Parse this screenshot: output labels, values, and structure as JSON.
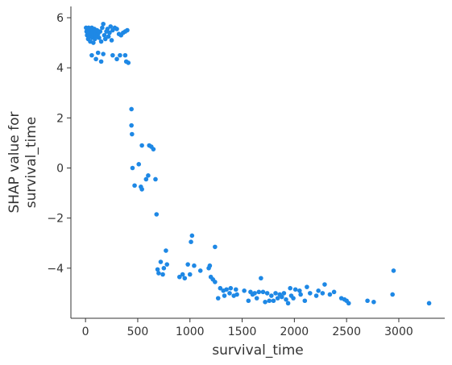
{
  "chart_data": {
    "type": "scatter",
    "title": "",
    "xlabel": "survival_time",
    "ylabel_lines": [
      "SHAP value for",
      "survival_time"
    ],
    "xlim": [
      -140,
      3440
    ],
    "ylim": [
      -6.0,
      6.45
    ],
    "xticks": [
      0,
      500,
      1000,
      1500,
      2000,
      2500,
      3000
    ],
    "yticks": [
      -4,
      -2,
      0,
      2,
      4,
      6
    ],
    "ytick_labels": [
      "−4",
      "−2",
      "0",
      "2",
      "4",
      "6"
    ],
    "point_color": "#1E88E5",
    "grid": false,
    "series": [
      {
        "points": [
          [
            5,
            5.6
          ],
          [
            10,
            5.45
          ],
          [
            15,
            5.3
          ],
          [
            20,
            5.5
          ],
          [
            25,
            5.15
          ],
          [
            30,
            5.6
          ],
          [
            35,
            5.4
          ],
          [
            40,
            5.25
          ],
          [
            45,
            5.05
          ],
          [
            50,
            5.5
          ],
          [
            55,
            5.35
          ],
          [
            60,
            5.6
          ],
          [
            65,
            5.2
          ],
          [
            70,
            5.45
          ],
          [
            75,
            5.0
          ],
          [
            80,
            5.3
          ],
          [
            85,
            5.55
          ],
          [
            90,
            5.15
          ],
          [
            95,
            5.4
          ],
          [
            100,
            5.25
          ],
          [
            110,
            5.5
          ],
          [
            120,
            5.35
          ],
          [
            130,
            5.2
          ],
          [
            140,
            5.45
          ],
          [
            150,
            5.05
          ],
          [
            160,
            5.6
          ],
          [
            170,
            5.75
          ],
          [
            180,
            5.3
          ],
          [
            190,
            5.15
          ],
          [
            200,
            5.45
          ],
          [
            210,
            5.55
          ],
          [
            220,
            5.25
          ],
          [
            230,
            5.4
          ],
          [
            240,
            5.65
          ],
          [
            250,
            5.1
          ],
          [
            260,
            5.5
          ],
          [
            280,
            5.6
          ],
          [
            300,
            5.55
          ],
          [
            320,
            5.35
          ],
          [
            340,
            5.3
          ],
          [
            360,
            5.4
          ],
          [
            380,
            5.45
          ],
          [
            400,
            5.5
          ],
          [
            60,
            4.5
          ],
          [
            100,
            4.35
          ],
          [
            120,
            4.6
          ],
          [
            150,
            4.25
          ],
          [
            170,
            4.55
          ],
          [
            260,
            4.5
          ],
          [
            300,
            4.35
          ],
          [
            330,
            4.5
          ],
          [
            380,
            4.5
          ],
          [
            390,
            4.25
          ],
          [
            410,
            4.2
          ],
          [
            440,
            2.35
          ],
          [
            440,
            1.7
          ],
          [
            445,
            1.35
          ],
          [
            450,
            0.0
          ],
          [
            470,
            -0.7
          ],
          [
            510,
            0.15
          ],
          [
            530,
            -0.75
          ],
          [
            540,
            -0.85
          ],
          [
            540,
            0.9
          ],
          [
            580,
            -0.45
          ],
          [
            600,
            -0.3
          ],
          [
            610,
            0.9
          ],
          [
            630,
            0.85
          ],
          [
            650,
            0.75
          ],
          [
            670,
            -0.45
          ],
          [
            680,
            -1.85
          ],
          [
            690,
            -4.05
          ],
          [
            700,
            -4.2
          ],
          [
            720,
            -3.75
          ],
          [
            740,
            -4.25
          ],
          [
            750,
            -4.0
          ],
          [
            770,
            -3.3
          ],
          [
            780,
            -3.85
          ],
          [
            900,
            -4.35
          ],
          [
            930,
            -4.25
          ],
          [
            950,
            -4.4
          ],
          [
            980,
            -3.85
          ],
          [
            1000,
            -4.25
          ],
          [
            1010,
            -2.95
          ],
          [
            1020,
            -2.7
          ],
          [
            1040,
            -3.9
          ],
          [
            1100,
            -4.1
          ],
          [
            1180,
            -4.0
          ],
          [
            1190,
            -3.9
          ],
          [
            1200,
            -4.35
          ],
          [
            1220,
            -4.45
          ],
          [
            1240,
            -4.55
          ],
          [
            1240,
            -3.15
          ],
          [
            1270,
            -5.2
          ],
          [
            1290,
            -4.8
          ],
          [
            1320,
            -4.9
          ],
          [
            1330,
            -5.1
          ],
          [
            1350,
            -4.85
          ],
          [
            1380,
            -5.0
          ],
          [
            1390,
            -4.8
          ],
          [
            1420,
            -5.1
          ],
          [
            1440,
            -4.85
          ],
          [
            1450,
            -5.05
          ],
          [
            1520,
            -4.9
          ],
          [
            1560,
            -5.3
          ],
          [
            1580,
            -4.95
          ],
          [
            1600,
            -5.05
          ],
          [
            1620,
            -5.0
          ],
          [
            1640,
            -5.2
          ],
          [
            1660,
            -4.95
          ],
          [
            1680,
            -4.4
          ],
          [
            1700,
            -4.95
          ],
          [
            1720,
            -5.35
          ],
          [
            1740,
            -5.0
          ],
          [
            1760,
            -5.3
          ],
          [
            1780,
            -5.1
          ],
          [
            1800,
            -5.3
          ],
          [
            1820,
            -5.0
          ],
          [
            1840,
            -5.2
          ],
          [
            1860,
            -5.05
          ],
          [
            1880,
            -5.15
          ],
          [
            1900,
            -5.0
          ],
          [
            1920,
            -5.25
          ],
          [
            1940,
            -5.4
          ],
          [
            1960,
            -4.8
          ],
          [
            1970,
            -5.1
          ],
          [
            1990,
            -5.2
          ],
          [
            2010,
            -4.85
          ],
          [
            2050,
            -4.9
          ],
          [
            2060,
            -5.05
          ],
          [
            2100,
            -5.3
          ],
          [
            2120,
            -4.75
          ],
          [
            2150,
            -5.0
          ],
          [
            2210,
            -5.1
          ],
          [
            2230,
            -4.9
          ],
          [
            2270,
            -5.0
          ],
          [
            2290,
            -4.65
          ],
          [
            2340,
            -5.05
          ],
          [
            2380,
            -4.95
          ],
          [
            2450,
            -5.2
          ],
          [
            2480,
            -5.25
          ],
          [
            2500,
            -5.3
          ],
          [
            2520,
            -5.4
          ],
          [
            2700,
            -5.3
          ],
          [
            2760,
            -5.35
          ],
          [
            2940,
            -5.05
          ],
          [
            2950,
            -4.1
          ],
          [
            3290,
            -5.4
          ]
        ]
      }
    ]
  }
}
